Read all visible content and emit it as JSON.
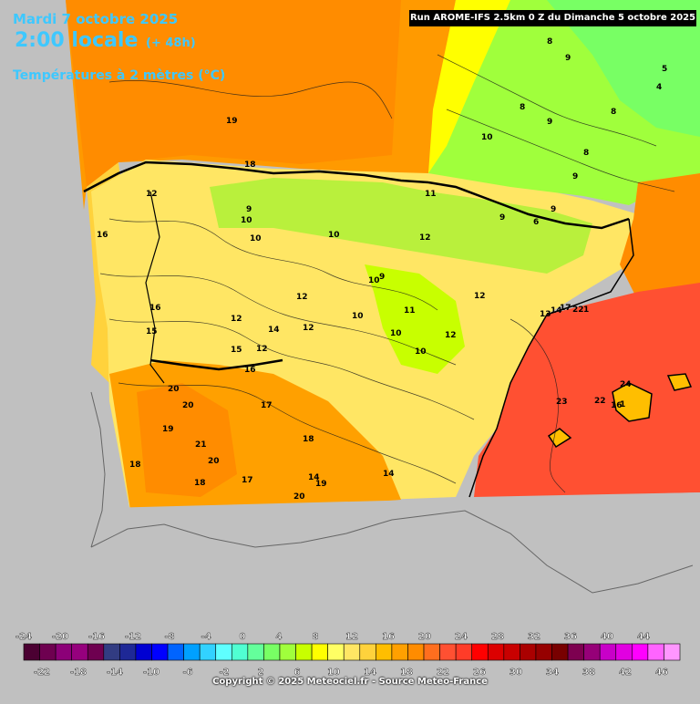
{
  "header": {
    "date": "Mardi 7 octobre 2025",
    "time": "2:00 locale",
    "lead": "(+ 48h)",
    "variable": "Températures à 2 mètres (°C)",
    "run": "Run AROME-IFS 2.5km 0 Z du Dimanche 5 octobre 2025"
  },
  "map_labels": [
    {
      "text": "19"
    },
    {
      "text": "18"
    },
    {
      "text": "12"
    },
    {
      "text": "11"
    },
    {
      "text": "9"
    },
    {
      "text": "10"
    },
    {
      "text": "10"
    },
    {
      "text": "10"
    },
    {
      "text": "12"
    },
    {
      "text": "8"
    },
    {
      "text": "9"
    },
    {
      "text": "9"
    },
    {
      "text": "8"
    },
    {
      "text": "8"
    },
    {
      "text": "8"
    },
    {
      "text": "5"
    },
    {
      "text": "4"
    },
    {
      "text": "9"
    },
    {
      "text": "9"
    },
    {
      "text": "6"
    },
    {
      "text": "9"
    },
    {
      "text": "10"
    },
    {
      "text": "16"
    },
    {
      "text": "16"
    },
    {
      "text": "15"
    },
    {
      "text": "12"
    },
    {
      "text": "12"
    },
    {
      "text": "12"
    },
    {
      "text": "10"
    },
    {
      "text": "9"
    },
    {
      "text": "12"
    },
    {
      "text": "10"
    },
    {
      "text": "11"
    },
    {
      "text": "10"
    },
    {
      "text": "10"
    },
    {
      "text": "12"
    },
    {
      "text": "15"
    },
    {
      "text": "12"
    },
    {
      "text": "14"
    },
    {
      "text": "16"
    },
    {
      "text": "20"
    },
    {
      "text": "20"
    },
    {
      "text": "19"
    },
    {
      "text": "21"
    },
    {
      "text": "20"
    },
    {
      "text": "18"
    },
    {
      "text": "17"
    },
    {
      "text": "18"
    },
    {
      "text": "18"
    },
    {
      "text": "17"
    },
    {
      "text": "14"
    },
    {
      "text": "19"
    },
    {
      "text": "20"
    },
    {
      "text": "14"
    },
    {
      "text": "13"
    },
    {
      "text": "14"
    },
    {
      "text": "17"
    },
    {
      "text": "22"
    },
    {
      "text": "1"
    },
    {
      "text": "23"
    },
    {
      "text": "22"
    },
    {
      "text": "16"
    },
    {
      "text": "24"
    },
    {
      "text": "1"
    }
  ],
  "scale": {
    "colors": [
      "#4b0032",
      "#6e0050",
      "#8c0078",
      "#96007d",
      "#6e0050",
      "#323c82",
      "#1e2896",
      "#0000d2",
      "#0000ff",
      "#0064ff",
      "#00a0ff",
      "#32d2ff",
      "#5fffff",
      "#50ffd2",
      "#64ff9b",
      "#78ff64",
      "#a0ff3c",
      "#c8ff00",
      "#ffff00",
      "#ffff64",
      "#ffe664",
      "#ffd23c",
      "#ffbe00",
      "#ffa000",
      "#ff8c00",
      "#ff6e1e",
      "#ff5032",
      "#ff3c28",
      "#ff0000",
      "#dc0000",
      "#c80000",
      "#aa0000",
      "#960000",
      "#780000",
      "#7d0050",
      "#960078",
      "#c800c8",
      "#e100e1",
      "#ff00ff",
      "#ff64ff",
      "#ff96ff"
    ],
    "upper_labels": [
      "-24",
      "-20",
      "-16",
      "-12",
      "-8",
      "-4",
      "0",
      "4",
      "8",
      "12",
      "16",
      "20",
      "24",
      "28",
      "32",
      "36",
      "40",
      "44"
    ],
    "lower_labels": [
      "-22",
      "-18",
      "-14",
      "-10",
      "-6",
      "-2",
      "2",
      "6",
      "10",
      "14",
      "18",
      "22",
      "26",
      "30",
      "34",
      "38",
      "42",
      "46"
    ]
  },
  "copyright": "Copyright © 2025 Meteociel.fr - Source Meteo-France"
}
